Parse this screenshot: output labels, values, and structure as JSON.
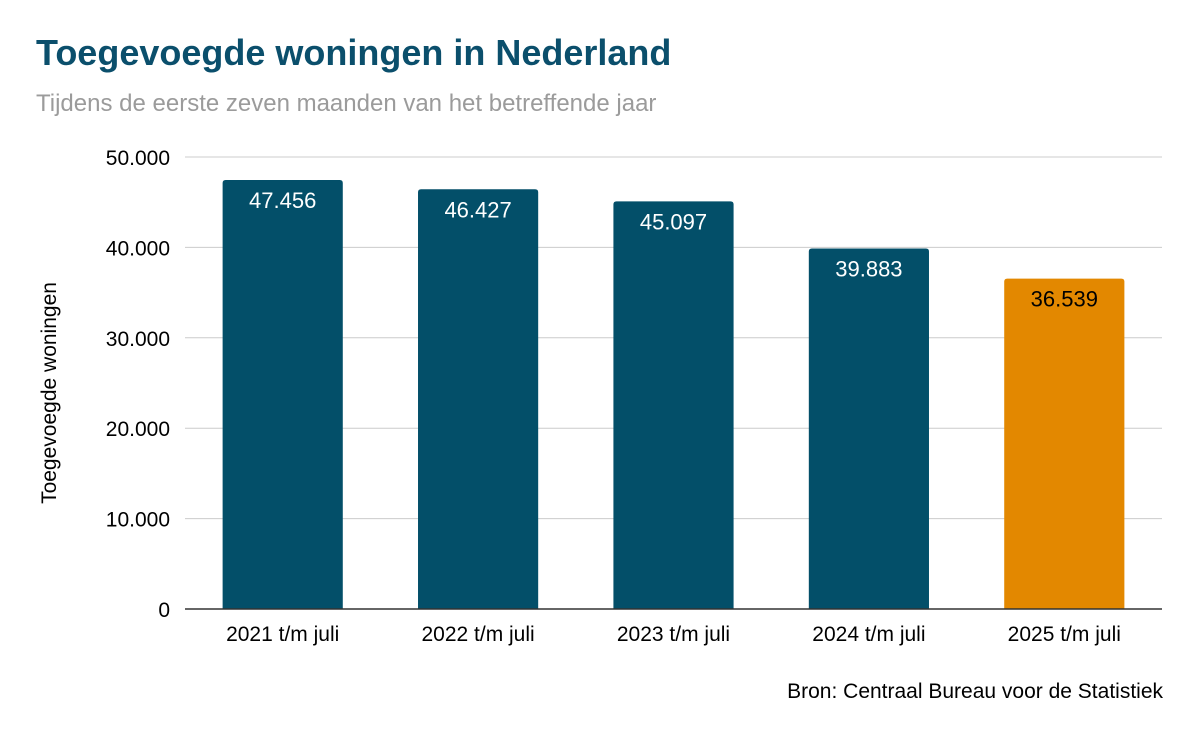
{
  "chart_data": {
    "type": "bar",
    "title": "Toegevoegde woningen in Nederland",
    "subtitle": "Tijdens de eerste zeven maanden van het betreffende jaar",
    "ylabel": "Toegevoegde woningen",
    "xlabel": "",
    "categories": [
      "2021 t/m juli",
      "2022 t/m juli",
      "2023 t/m juli",
      "2024 t/m juli",
      "2025 t/m juli"
    ],
    "values": [
      47456,
      46427,
      45097,
      39883,
      36539
    ],
    "value_labels": [
      "47.456",
      "46.427",
      "45.097",
      "39.883",
      "36.539"
    ],
    "ylim": [
      0,
      50000
    ],
    "yticks": [
      0,
      10000,
      20000,
      30000,
      40000,
      50000
    ],
    "ytick_labels": [
      "0",
      "10.000",
      "20.000",
      "30.000",
      "40.000",
      "50.000"
    ],
    "grid": true,
    "legend": "none",
    "colors": {
      "default_bar": "#034f69",
      "highlight_bar": "#e38800",
      "title": "#0b4f6c",
      "subtitle": "#9b9b9b",
      "grid": "#cccccc"
    },
    "highlight_index": 4,
    "source": "Bron: Centraal Bureau voor de Statistiek"
  }
}
